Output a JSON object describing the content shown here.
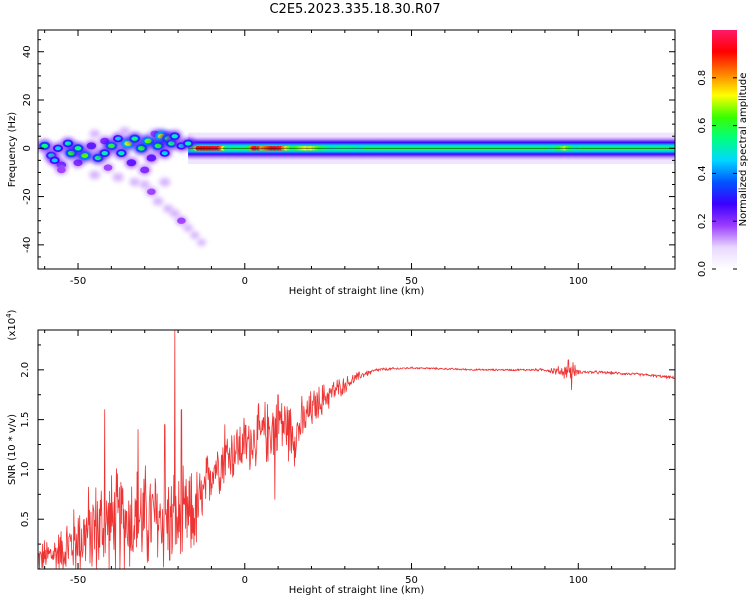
{
  "title": "C2E5.2023.335.18.30.R07",
  "chart_data": [
    {
      "type": "heatmap",
      "name": "spectrogram",
      "xlabel": "Height of straight line (km)",
      "ylabel": "Frequency (Hz)",
      "xlim": [
        -62,
        129
      ],
      "ylim": [
        -50,
        49
      ],
      "xticks": [
        -50,
        0,
        50,
        100
      ],
      "yticks": [
        -40,
        -20,
        0,
        20,
        40
      ],
      "grid": false,
      "colorbar": {
        "label": "Normalized spectral amplitude",
        "range": [
          0.0,
          1.0
        ],
        "ticks": [
          0.0,
          0.2,
          0.4,
          0.6,
          0.8
        ],
        "tick_labels": [
          "0.0",
          "0.2",
          "0.4",
          "0.6",
          "0.8"
        ],
        "colormap": [
          "#ffffff",
          "#e8d8ff",
          "#9b3cff",
          "#3a00ff",
          "#0055ff",
          "#00d8ff",
          "#00ff80",
          "#38ff00",
          "#ffff00",
          "#ff8000",
          "#ff0000",
          "#ff1a6a"
        ]
      },
      "band": {
        "center_hz": 0,
        "x_start_km": -17,
        "x_end_km": 129,
        "amplitude_profile": [
          [
            -17,
            0.35
          ],
          [
            -14,
            0.9
          ],
          [
            -8,
            0.95
          ],
          [
            -5,
            0.5
          ],
          [
            0,
            0.45
          ],
          [
            2,
            0.8
          ],
          [
            3,
            0.95
          ],
          [
            5,
            0.8
          ],
          [
            8,
            0.9
          ],
          [
            10,
            0.95
          ],
          [
            14,
            0.6
          ],
          [
            19,
            0.75
          ],
          [
            26,
            0.5
          ],
          [
            30,
            0.55
          ],
          [
            40,
            0.45
          ],
          [
            60,
            0.45
          ],
          [
            80,
            0.45
          ],
          [
            90,
            0.45
          ],
          [
            96,
            0.7
          ],
          [
            100,
            0.45
          ],
          [
            129,
            0.45
          ]
        ]
      },
      "scatter_blobs": [
        {
          "x": -60,
          "y": 1,
          "a": 0.55
        },
        {
          "x": -58,
          "y": -3,
          "a": 0.5
        },
        {
          "x": -56,
          "y": 0,
          "a": 0.45
        },
        {
          "x": -55,
          "y": -7,
          "a": 0.4
        },
        {
          "x": -53,
          "y": 2,
          "a": 0.5
        },
        {
          "x": -52,
          "y": -2,
          "a": 0.6
        },
        {
          "x": -50,
          "y": -6,
          "a": 0.35
        },
        {
          "x": -48,
          "y": -3,
          "a": 0.65
        },
        {
          "x": -46,
          "y": 1,
          "a": 0.4
        },
        {
          "x": -44,
          "y": -4,
          "a": 0.55
        },
        {
          "x": -42,
          "y": 3,
          "a": 0.35
        },
        {
          "x": -41,
          "y": -8,
          "a": 0.3
        },
        {
          "x": -40,
          "y": 1,
          "a": 0.6
        },
        {
          "x": -38,
          "y": 4,
          "a": 0.45
        },
        {
          "x": -37,
          "y": -2,
          "a": 0.5
        },
        {
          "x": -35,
          "y": 2,
          "a": 0.7
        },
        {
          "x": -34,
          "y": -6,
          "a": 0.4
        },
        {
          "x": -33,
          "y": 4,
          "a": 0.55
        },
        {
          "x": -31,
          "y": 0,
          "a": 0.6
        },
        {
          "x": -30,
          "y": -9,
          "a": 0.35
        },
        {
          "x": -29,
          "y": 3,
          "a": 0.65
        },
        {
          "x": -28,
          "y": -4,
          "a": 0.4
        },
        {
          "x": -27,
          "y": 6,
          "a": 0.3
        },
        {
          "x": -26,
          "y": 1,
          "a": 0.6
        },
        {
          "x": -25,
          "y": 5,
          "a": 0.7
        },
        {
          "x": -24,
          "y": -2,
          "a": 0.45
        },
        {
          "x": -23,
          "y": 4,
          "a": 0.6
        },
        {
          "x": -22,
          "y": 2,
          "a": 0.55
        },
        {
          "x": -21,
          "y": 5,
          "a": 0.5
        },
        {
          "x": -19,
          "y": 1,
          "a": 0.45
        },
        {
          "x": -17,
          "y": 2,
          "a": 0.5
        },
        {
          "x": -55,
          "y": -9,
          "a": 0.3
        },
        {
          "x": -45,
          "y": -11,
          "a": 0.25
        },
        {
          "x": -38,
          "y": -12,
          "a": 0.25
        },
        {
          "x": -33,
          "y": -14,
          "a": 0.2
        },
        {
          "x": -28,
          "y": -18,
          "a": 0.3
        },
        {
          "x": -26,
          "y": -22,
          "a": 0.22
        },
        {
          "x": -23,
          "y": -25,
          "a": 0.18
        },
        {
          "x": -21,
          "y": -27,
          "a": 0.2
        },
        {
          "x": -19,
          "y": -30,
          "a": 0.3
        },
        {
          "x": -17,
          "y": -33,
          "a": 0.15
        },
        {
          "x": -15,
          "y": -36,
          "a": 0.12
        },
        {
          "x": -13,
          "y": -39,
          "a": 0.1
        },
        {
          "x": -24,
          "y": -14,
          "a": 0.25
        },
        {
          "x": -30,
          "y": -15,
          "a": 0.2
        },
        {
          "x": -42,
          "y": -2,
          "a": 0.5
        },
        {
          "x": -50,
          "y": 0,
          "a": 0.55
        },
        {
          "x": -57,
          "y": -5,
          "a": 0.45
        },
        {
          "x": -36,
          "y": 7,
          "a": 0.25
        },
        {
          "x": -45,
          "y": 6,
          "a": 0.2
        }
      ]
    },
    {
      "type": "line",
      "name": "snr",
      "xlabel": "Height of straight line (km)",
      "ylabel": "SNR (10 * v/v)",
      "multiplier_label": "(x10",
      "multiplier_exponent": "4",
      "multiplier_close": ")",
      "xlim": [
        -62,
        129
      ],
      "ylim": [
        0,
        2.4
      ],
      "xticks": [
        -50,
        0,
        50,
        100
      ],
      "yticks": [
        0.5,
        1.0,
        1.5,
        2.0
      ],
      "ytick_labels": [
        "0.5",
        "1.0",
        "1.5",
        "2.0"
      ],
      "grid": false,
      "color": "#ee3333",
      "envelope": {
        "x": [
          -62,
          -55,
          -50,
          -45,
          -40,
          -35,
          -30,
          -25,
          -20,
          -15,
          -12,
          -10,
          -5,
          0,
          5,
          8,
          10,
          15,
          20,
          25,
          30,
          35,
          40,
          45,
          50,
          60,
          70,
          80,
          90,
          95,
          98,
          100,
          110,
          120,
          129
        ],
        "mean": [
          0.1,
          0.18,
          0.3,
          0.4,
          0.45,
          0.5,
          0.5,
          0.5,
          0.45,
          0.55,
          0.75,
          1.0,
          1.15,
          1.25,
          1.35,
          1.4,
          1.5,
          1.35,
          1.6,
          1.75,
          1.85,
          1.95,
          2.0,
          2.01,
          2.02,
          2.01,
          2.0,
          2.0,
          2.0,
          1.98,
          2.0,
          1.98,
          1.97,
          1.95,
          1.92
        ],
        "spread": [
          0.15,
          0.25,
          0.4,
          0.5,
          0.55,
          0.55,
          0.55,
          0.55,
          0.5,
          0.45,
          0.35,
          0.3,
          0.3,
          0.3,
          0.3,
          0.35,
          0.35,
          0.3,
          0.2,
          0.15,
          0.08,
          0.04,
          0.02,
          0.015,
          0.01,
          0.01,
          0.01,
          0.01,
          0.015,
          0.06,
          0.1,
          0.02,
          0.015,
          0.015,
          0.015
        ]
      },
      "spikes": [
        {
          "x": -42,
          "y": 1.6
        },
        {
          "x": -32,
          "y": 1.4
        },
        {
          "x": -24,
          "y": 1.45
        },
        {
          "x": -21,
          "y": 2.4
        },
        {
          "x": -19,
          "y": 1.6
        },
        {
          "x": -6,
          "y": 1.45
        },
        {
          "x": 10,
          "y": 1.75
        },
        {
          "x": 9,
          "y": 0.7
        },
        {
          "x": 97,
          "y": 2.1
        },
        {
          "x": 98,
          "y": 1.8
        }
      ],
      "num_points": 1300
    }
  ]
}
